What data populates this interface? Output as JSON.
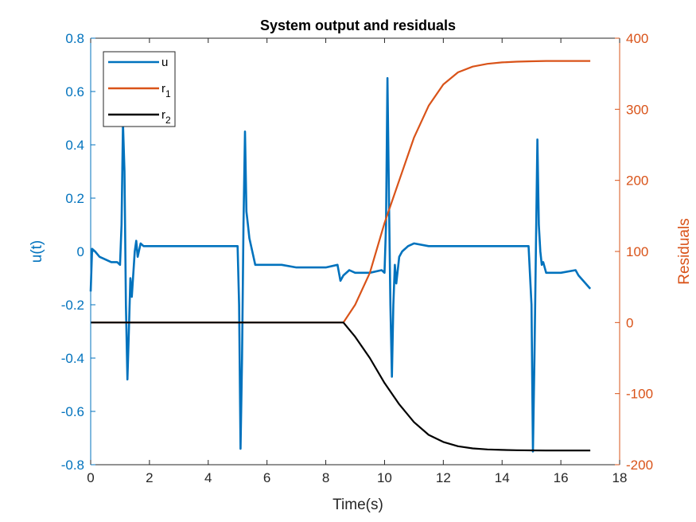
{
  "chart_data": {
    "type": "line",
    "title": "System output and residuals",
    "xlabel": "Time(s)",
    "ylabel_left": "u(t)",
    "ylabel_right": "Residuals",
    "xlim": [
      0,
      18
    ],
    "ylim_left": [
      -0.8,
      0.8
    ],
    "ylim_right": [
      -200,
      400
    ],
    "x_ticks": [
      "0",
      "2",
      "4",
      "6",
      "8",
      "10",
      "12",
      "14",
      "16",
      "18"
    ],
    "y_left_ticks": [
      "-0.8",
      "-0.6",
      "-0.4",
      "-0.2",
      "0",
      "0.2",
      "0.4",
      "0.6",
      "0.8"
    ],
    "y_right_ticks": [
      "-200",
      "-100",
      "0",
      "100",
      "200",
      "300",
      "400"
    ],
    "grid": false,
    "legend_position": "top-left",
    "colors": {
      "u": "#0072BD",
      "r1": "#D95319",
      "r2": "#000000",
      "axis": "#262626"
    },
    "series": [
      {
        "name": "u",
        "axis": "left",
        "x": [
          0,
          0.05,
          0.15,
          0.3,
          0.5,
          0.7,
          0.9,
          1.0,
          1.05,
          1.1,
          1.15,
          1.2,
          1.25,
          1.3,
          1.35,
          1.4,
          1.5,
          1.55,
          1.6,
          1.7,
          1.8,
          1.9,
          2.0,
          2.2,
          2.5,
          3.0,
          3.5,
          4.0,
          4.5,
          4.9,
          5.0,
          5.05,
          5.1,
          5.15,
          5.2,
          5.25,
          5.3,
          5.35,
          5.4,
          5.5,
          5.6,
          5.8,
          6.0,
          6.5,
          7.0,
          7.5,
          8.0,
          8.4,
          8.5,
          8.6,
          8.8,
          9.0,
          9.5,
          9.9,
          10.0,
          10.05,
          10.1,
          10.15,
          10.2,
          10.25,
          10.3,
          10.35,
          10.4,
          10.5,
          10.6,
          10.8,
          11.0,
          11.5,
          12.0,
          13.0,
          14.0,
          14.9,
          15.0,
          15.05,
          15.1,
          15.15,
          15.2,
          15.25,
          15.3,
          15.35,
          15.4,
          15.5,
          15.7,
          16.0,
          16.5,
          16.6,
          17.0
        ],
        "values": [
          -0.15,
          0.01,
          0.0,
          -0.02,
          -0.03,
          -0.04,
          -0.04,
          -0.05,
          0.1,
          0.48,
          0.3,
          -0.2,
          -0.48,
          -0.3,
          -0.1,
          -0.17,
          0.0,
          0.04,
          -0.02,
          0.03,
          0.02,
          0.02,
          0.02,
          0.02,
          0.02,
          0.02,
          0.02,
          0.02,
          0.02,
          0.02,
          0.02,
          -0.2,
          -0.74,
          -0.4,
          0.1,
          0.45,
          0.15,
          0.1,
          0.05,
          0.0,
          -0.05,
          -0.05,
          -0.05,
          -0.05,
          -0.06,
          -0.06,
          -0.06,
          -0.05,
          -0.11,
          -0.09,
          -0.07,
          -0.08,
          -0.08,
          -0.07,
          -0.08,
          0.1,
          0.65,
          0.2,
          -0.2,
          -0.47,
          -0.2,
          -0.05,
          -0.12,
          -0.02,
          0.0,
          0.02,
          0.03,
          0.02,
          0.02,
          0.02,
          0.02,
          0.02,
          -0.2,
          -0.75,
          -0.4,
          0.0,
          0.42,
          0.1,
          0.0,
          -0.05,
          -0.04,
          -0.08,
          -0.08,
          -0.08,
          -0.07,
          -0.09,
          -0.14
        ]
      },
      {
        "name": "r_1",
        "axis": "right",
        "x": [
          0,
          2,
          4,
          6,
          8,
          8.6,
          9.0,
          9.5,
          10.0,
          10.5,
          11.0,
          11.5,
          12.0,
          12.5,
          13.0,
          13.5,
          14.0,
          14.5,
          15.0,
          15.5,
          16.0,
          16.5,
          17.0
        ],
        "values": [
          0,
          0,
          0,
          0,
          0,
          0,
          25,
          70,
          140,
          200,
          260,
          305,
          335,
          352,
          360,
          364,
          366,
          367,
          367.5,
          368,
          368,
          368,
          368
        ]
      },
      {
        "name": "r_2",
        "axis": "right",
        "x": [
          0,
          2,
          4,
          6,
          8,
          8.6,
          9.0,
          9.5,
          10.0,
          10.5,
          11.0,
          11.5,
          12.0,
          12.5,
          13.0,
          13.5,
          14.0,
          14.5,
          15.0,
          15.5,
          16.0,
          16.5,
          17.0
        ],
        "values": [
          0,
          0,
          0,
          0,
          0,
          0,
          -20,
          -50,
          -85,
          -115,
          -140,
          -158,
          -168,
          -174,
          -177,
          -178.5,
          -179.2,
          -179.6,
          -179.8,
          -180,
          -180,
          -180,
          -180
        ]
      }
    ]
  }
}
